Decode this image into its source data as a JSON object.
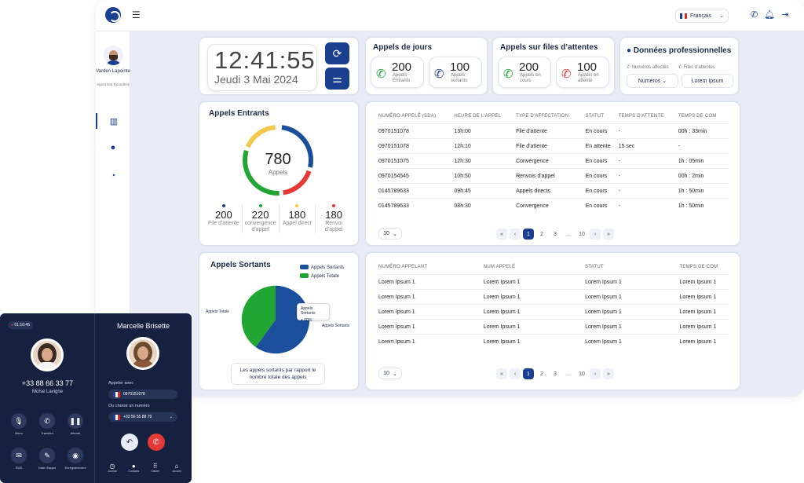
{
  "language": "Français",
  "user": {
    "name": "Varden Lapointe",
    "role": "Agent test Roundesk"
  },
  "clock": {
    "time": "12:41:55",
    "date": "Jeudi 3 Mai 2024"
  },
  "appels_jours": {
    "title": "Appels de jours",
    "entrants": {
      "num": "200",
      "label": "Appels Entrants"
    },
    "sortants": {
      "num": "100",
      "label": "Appels sortants"
    }
  },
  "files": {
    "title": "Appels sur files d’attentes",
    "en_cours": {
      "num": "200",
      "label": "Appels en cours"
    },
    "en_attente": {
      "num": "100",
      "label": "Appels en attente"
    }
  },
  "pro": {
    "title": "Données professionnelles",
    "num_affectes": "Numéros affectés",
    "files_attentes": "Files d’attentes",
    "select": "Numéros",
    "value": "Lorem Ipsum"
  },
  "entrants": {
    "title": "Appels Entrants",
    "total": "780",
    "total_label": "Appels",
    "stats": [
      {
        "n": "200",
        "l": "File d'attente",
        "c": "#1b3f8f"
      },
      {
        "n": "220",
        "l": "convergence d'appel",
        "c": "#22a633"
      },
      {
        "n": "180",
        "l": "Appel direct",
        "c": "#f2c94c"
      },
      {
        "n": "180",
        "l": "Renvoi d'appel",
        "c": "#e53935"
      }
    ]
  },
  "table1": {
    "headers": [
      "NUMÉRO APPELÉ (SDA)",
      "HEURE DE L'APPEL",
      "TYPE D'AFFECTATION",
      "STATUT",
      "TEMPS D'ATTENTE",
      "TEMPS DE COM"
    ],
    "rows": [
      [
        "0970151078",
        "13h:00",
        "File d'attente",
        "En cours",
        "-",
        "00h : 33min"
      ],
      [
        "0970151078",
        "12h:10",
        "File d'attente",
        "En attente",
        "15 sec",
        "-"
      ],
      [
        "0970151075",
        "12h:30",
        "Convergence",
        "En cours",
        "-",
        "1h : 05min"
      ],
      [
        "0970154545",
        "10h:50",
        "Renvois d'appel",
        "En cours",
        "-",
        "00h : 2min"
      ],
      [
        "0145789633",
        "09h:45",
        "Appels directs",
        "En cours",
        "-",
        "1h : 50min"
      ],
      [
        "0145789633",
        "08h:30",
        "Convergence",
        "En cours",
        "-",
        "1h : 50min"
      ]
    ],
    "perpage": "10",
    "pages": [
      "1",
      "2",
      "3",
      "...",
      "10"
    ]
  },
  "sortants": {
    "title": "Appels Sortants",
    "legend": [
      "Appels Sortants",
      "Appels Totale"
    ],
    "label_totale": "Appels Totale",
    "label_sortants": "Appels Sortants",
    "tooltip_title": "Appels Sortants",
    "tooltip_value": "60%",
    "note": "Les appels sortants par rapport le nombre totale  des appels"
  },
  "chart_data": {
    "type": "pie",
    "categories": [
      "Appels Sortants",
      "Appels Totale"
    ],
    "values": [
      60,
      40
    ],
    "colors": [
      "#1b4f9c",
      "#22a633"
    ]
  },
  "table2": {
    "headers": [
      "NUMÉRO APPELANT",
      "NUM APPELÉ",
      "STATUT",
      "TEMPS DE COM"
    ],
    "rows": [
      [
        "Lorem Ipsum 1",
        "Lorem Ipsum 1",
        "Lorem Ipsum 1",
        "Lorem Ipsum 1"
      ],
      [
        "Lorem Ipsum 1",
        "Lorem Ipsum 1",
        "Lorem Ipsum 1",
        "Lorem Ipsum 1"
      ],
      [
        "Lorem Ipsum 1",
        "Lorem Ipsum 1",
        "Lorem Ipsum 1",
        "Lorem Ipsum 1"
      ],
      [
        "Lorem Ipsum 1",
        "Lorem Ipsum 1",
        "Lorem Ipsum 1",
        "Lorem Ipsum 1"
      ],
      [
        "Lorem Ipsum 1",
        "Lorem Ipsum 1",
        "Lorem Ipsum 1",
        "Lorem Ipsum 1"
      ]
    ],
    "perpage": "10",
    "pages": [
      "1",
      "2",
      "3",
      "...",
      "10"
    ]
  },
  "phone": {
    "timer": "01:10:45",
    "number": "+33 88 66 33 77",
    "name": "Moïse Lavigne",
    "controls": [
      "Micro",
      "Transfert",
      "Attente",
      "SMS",
      "Note d'appel",
      "Enregistrement"
    ],
    "right_name": "Marcelle Brisette",
    "appeler_avec": "Appeler avec",
    "appeler_num": "0970151078",
    "choisir": "Ou choisir un numéro",
    "choisir_num": "+33 56 55 88 79",
    "tabs": [
      "Journal",
      "Contacts",
      "Clavier",
      "Accueil"
    ]
  }
}
